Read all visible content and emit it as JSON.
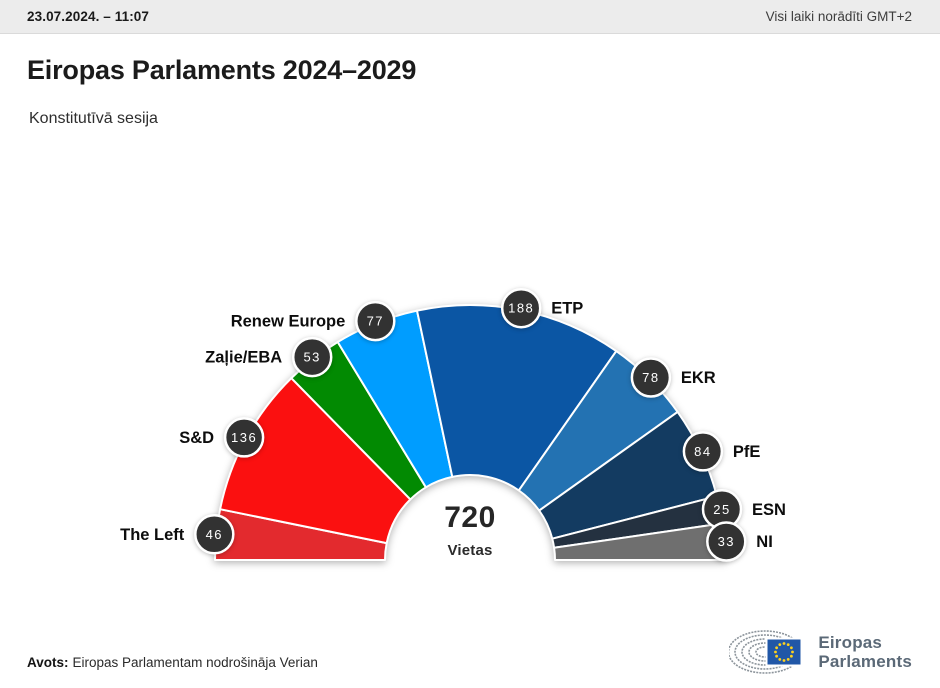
{
  "top_bar": {
    "datetime": "23.07.2024. – 11:07",
    "timezone_note": "Visi laiki norādīti GMT+2"
  },
  "header": {
    "title": "Eiropas Parlaments 2024–2029",
    "subtitle": "Konstitutīvā sesija"
  },
  "chart_data": {
    "type": "pie",
    "variant": "hemicycle_half_donut",
    "title": "Eiropas Parlaments 2024–2029",
    "total_seats": 720,
    "center_label": {
      "value": "720",
      "unit": "Vietas"
    },
    "categories": [
      "The Left",
      "S&D",
      "Zaļie/EBA",
      "Renew Europe",
      "ETP",
      "EKR",
      "PfE",
      "ESN",
      "NI"
    ],
    "values": [
      46,
      136,
      53,
      77,
      188,
      78,
      84,
      25,
      33
    ],
    "series": [
      {
        "name": "The Left",
        "seats": 46,
        "color": "#e32a2e"
      },
      {
        "name": "S&D",
        "seats": 136,
        "color": "#fb1010"
      },
      {
        "name": "Zaļie/EBA",
        "seats": 53,
        "color": "#028a02"
      },
      {
        "name": "Renew Europe",
        "seats": 77,
        "color": "#009dff"
      },
      {
        "name": "ETP",
        "seats": 188,
        "color": "#0b56a4"
      },
      {
        "name": "EKR",
        "seats": 78,
        "color": "#2372b2"
      },
      {
        "name": "PfE",
        "seats": 84,
        "color": "#133b61"
      },
      {
        "name": "ESN",
        "seats": 25,
        "color": "#243140"
      },
      {
        "name": "NI",
        "seats": 33,
        "color": "#6f6f6f"
      }
    ],
    "legend_position": "around-arc",
    "badge_style": {
      "fill": "#323232",
      "text": "#ffffff",
      "border": "#ffffff"
    }
  },
  "footer": {
    "source_label": "Avots:",
    "source_text": "Eiropas Parlamentam nodrošināja Verian"
  },
  "logo": {
    "line1": "Eiropas",
    "line2": "Parlaments",
    "flag_color": "#2157a7",
    "star_color": "#ffd21c",
    "arc_color": "#8c949b"
  }
}
